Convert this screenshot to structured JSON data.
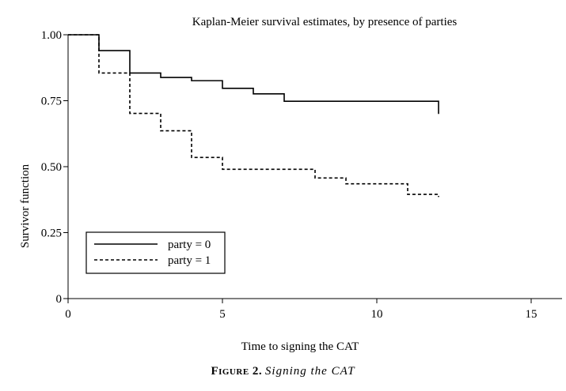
{
  "chart_data": {
    "type": "line",
    "title": "Kaplan-Meier survival estimates, by presence of parties",
    "xlabel": "Time to signing the CAT",
    "ylabel": "Survivor function",
    "xlim": [
      0,
      16
    ],
    "ylim": [
      0,
      1
    ],
    "x_ticks": [
      0,
      5,
      10,
      15
    ],
    "y_ticks": [
      0,
      0.25,
      0.5,
      0.75,
      1.0
    ],
    "x_tick_labels": [
      "0",
      "5",
      "10",
      "15"
    ],
    "y_tick_labels": [
      "0",
      "0.25",
      "0.50",
      "0.75",
      "1.00"
    ],
    "grid": false,
    "legend_position": "bottom-left",
    "series": [
      {
        "name": "party = 0",
        "style": "solid",
        "steps": [
          [
            0,
            1.0
          ],
          [
            1,
            0.94
          ],
          [
            2,
            0.855
          ],
          [
            3,
            0.838
          ],
          [
            4,
            0.826
          ],
          [
            5,
            0.797
          ],
          [
            6,
            0.776
          ],
          [
            7,
            0.748
          ],
          [
            12,
            0.7
          ]
        ]
      },
      {
        "name": "party = 1",
        "style": "dashed",
        "steps": [
          [
            0,
            1.0
          ],
          [
            1,
            0.855
          ],
          [
            2,
            0.702
          ],
          [
            3,
            0.636
          ],
          [
            4,
            0.535
          ],
          [
            5,
            0.49
          ],
          [
            8,
            0.457
          ],
          [
            9,
            0.435
          ],
          [
            11,
            0.395
          ],
          [
            12,
            0.385
          ]
        ]
      }
    ]
  },
  "caption": {
    "label": "Figure 2.",
    "text": "Signing the CAT"
  }
}
